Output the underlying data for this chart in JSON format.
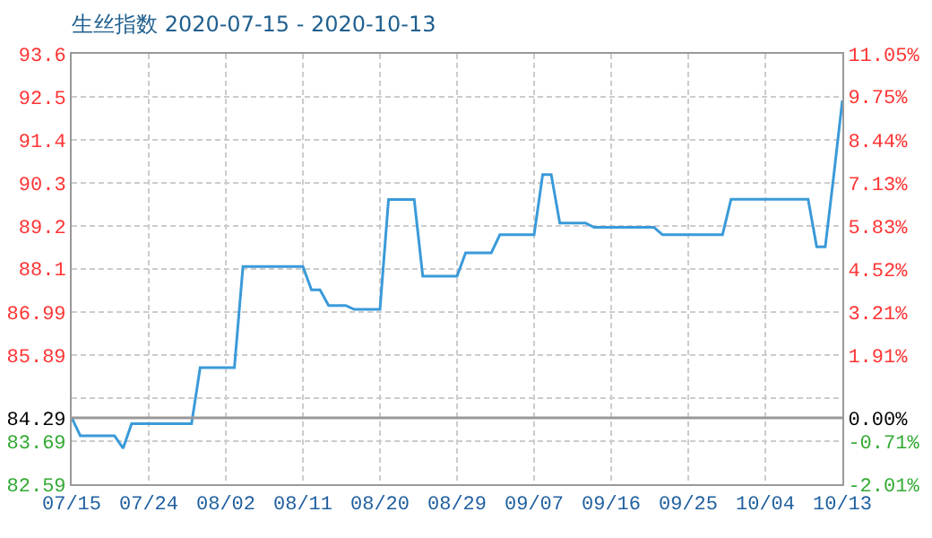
{
  "chart_data": {
    "type": "line",
    "title": "生丝指数 2020-07-15 - 2020-10-13",
    "x": [
      "2020-07-15",
      "2020-07-16",
      "2020-07-20",
      "2020-07-21",
      "2020-07-22",
      "2020-07-29",
      "2020-07-30",
      "2020-08-03",
      "2020-08-04",
      "2020-08-11",
      "2020-08-12",
      "2020-08-13",
      "2020-08-14",
      "2020-08-16",
      "2020-08-17",
      "2020-08-20",
      "2020-08-21",
      "2020-08-24",
      "2020-08-25",
      "2020-08-29",
      "2020-08-30",
      "2020-09-02",
      "2020-09-03",
      "2020-09-07",
      "2020-09-08",
      "2020-09-09",
      "2020-09-10",
      "2020-09-13",
      "2020-09-14",
      "2020-09-21",
      "2020-09-22",
      "2020-09-29",
      "2020-09-30",
      "2020-10-09",
      "2020-10-10",
      "2020-10-11",
      "2020-10-12",
      "2020-10-13"
    ],
    "series": [
      {
        "color": "#3a9ad9",
        "values": [
          84.29,
          83.83,
          83.83,
          83.51,
          84.14,
          84.14,
          85.57,
          85.57,
          88.16,
          88.16,
          87.56,
          87.56,
          87.16,
          87.16,
          87.06,
          87.06,
          89.87,
          89.87,
          87.91,
          87.91,
          88.51,
          88.51,
          88.97,
          88.97,
          90.51,
          90.51,
          89.27,
          89.27,
          89.16,
          89.16,
          88.97,
          88.97,
          89.88,
          89.88,
          88.66,
          88.66,
          90.5,
          92.41
        ]
      }
    ],
    "xlim": [
      "2020-07-15",
      "2020-10-13"
    ],
    "xticks": [
      {
        "value": "2020-07-15",
        "label": "07/15"
      },
      {
        "value": "2020-07-24",
        "label": "07/24"
      },
      {
        "value": "2020-08-02",
        "label": "08/02"
      },
      {
        "value": "2020-08-11",
        "label": "08/11"
      },
      {
        "value": "2020-08-20",
        "label": "08/20"
      },
      {
        "value": "2020-08-29",
        "label": "08/29"
      },
      {
        "value": "2020-09-07",
        "label": "09/07"
      },
      {
        "value": "2020-09-16",
        "label": "09/16"
      },
      {
        "value": "2020-09-25",
        "label": "09/25"
      },
      {
        "value": "2020-10-04",
        "label": "10/04"
      },
      {
        "value": "2020-10-13",
        "label": "10/13"
      }
    ],
    "ylim": [
      82.59,
      93.6
    ],
    "yticks": [
      82.59,
      83.69,
      {
        "value": 84.29,
        "label": "84.29"
      },
      {
        "value": 84.79,
        "label": null
      },
      85.89,
      86.99,
      {
        "value": 88.1,
        "label": "88.1"
      },
      {
        "value": 89.2,
        "label": "89.2"
      },
      {
        "value": 90.3,
        "label": "90.3"
      },
      {
        "value": 91.4,
        "label": "91.4"
      },
      {
        "value": 92.5,
        "label": "92.5"
      },
      {
        "value": 93.6,
        "label": "93.6"
      }
    ],
    "y2lim": [
      -2.01,
      11.05
    ],
    "y2ticks": [
      {
        "value": -2.01,
        "label": "-2.01%"
      },
      {
        "value": -0.71,
        "label": "-0.71%"
      },
      {
        "value": 0,
        "label": "0.00%"
      },
      {
        "value": 1.91,
        "label": "1.91%"
      },
      {
        "value": 3.21,
        "label": "3.21%"
      },
      {
        "value": 4.52,
        "label": "4.52%"
      },
      {
        "value": 5.83,
        "label": "5.83%"
      },
      {
        "value": 7.13,
        "label": "7.13%"
      },
      {
        "value": 8.44,
        "label": "8.44%"
      },
      {
        "value": 9.75,
        "label": "9.75%"
      },
      {
        "value": 11.05,
        "label": "11.05%"
      }
    ],
    "ref_lines": [
      {
        "axis": "y",
        "value": 84.29,
        "color": "#999999"
      }
    ],
    "grid": true,
    "marker": "none",
    "line_style": "solid"
  }
}
